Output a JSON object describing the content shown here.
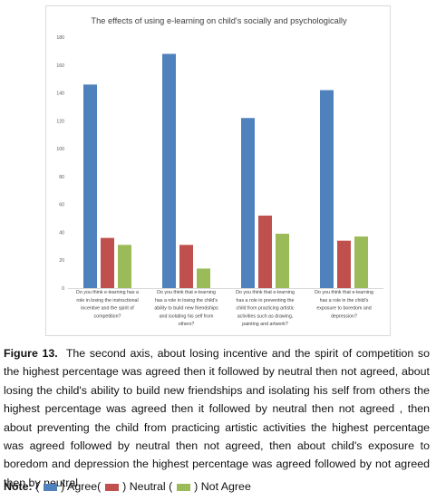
{
  "chart_data": {
    "type": "bar",
    "title": "The effects of using e-learning on child's socially and psychologically",
    "xlabel": "",
    "ylabel": "",
    "ylim": [
      0,
      180
    ],
    "yticks": [
      0,
      20,
      40,
      60,
      80,
      100,
      120,
      140,
      160,
      180
    ],
    "grid": false,
    "legend": "none",
    "categories": [
      [
        "Do you think e-learning has a",
        "role in losing the instructional",
        "incentive and the spirit of",
        "competition?"
      ],
      [
        "Do you think that e-learning",
        "has a role in losing the child's",
        "ability to build new friendships",
        "and isolating his self from",
        "others?"
      ],
      [
        "Do you think that e-learning",
        "has a role in preventing the",
        "child from practicing artistic",
        "activities such as drawing,",
        "painting and artwork?"
      ],
      [
        "Do you think that e-learning",
        "has a role in the child's",
        "exposure to boredom and",
        "depression?"
      ]
    ],
    "series": [
      {
        "color": "#4f81bd",
        "values": [
          146,
          168,
          122,
          142
        ]
      },
      {
        "color": "#c0504d",
        "values": [
          36,
          31,
          52,
          34
        ]
      },
      {
        "color": "#9bbb59",
        "values": [
          31,
          14,
          39,
          37
        ]
      }
    ]
  },
  "caption": {
    "label": "Figure 13.",
    "text": "The second axis, about losing incentive and the spirit of competition so the highest percentage was agreed then it followed by neutral then not agreed, about losing the child's ability to build new friendships and isolating his self from others the highest percentage was agreed then it followed by neutral then not agreed , then about preventing the child from practicing artistic activities the highest percentage was agreed followed by neutral then not agreed, then about child's exposure to boredom and depression the highest percentage was agreed followed by not agreed then by neutral."
  },
  "note": {
    "label": "Note:",
    "open1": "(",
    "item1": ") Agree(",
    "item2": ") Neutral (",
    "item3": ") Not Agree",
    "colors": [
      "#4f81bd",
      "#c0504d",
      "#9bbb59"
    ]
  }
}
